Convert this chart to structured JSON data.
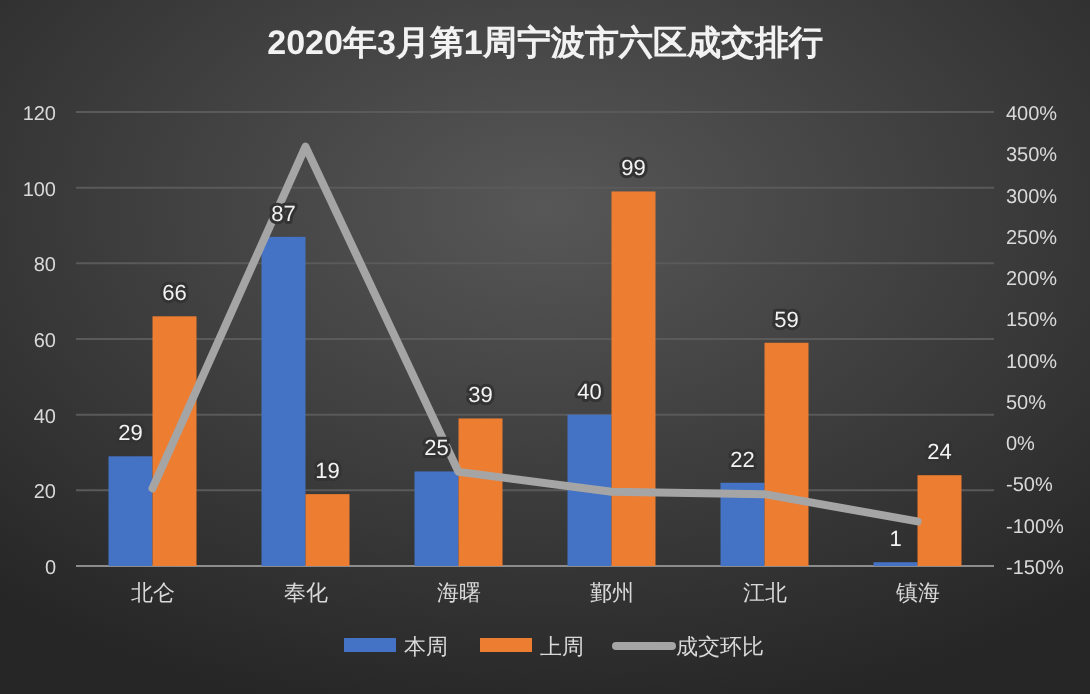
{
  "chart_data": {
    "type": "bar",
    "title": "2020年3月第1周宁波市六区成交排行",
    "categories": [
      "北仑",
      "奉化",
      "海曙",
      "鄞州",
      "江北",
      "镇海"
    ],
    "series": [
      {
        "name": "本周",
        "color": "#4472c4",
        "values": [
          29,
          87,
          25,
          40,
          22,
          1
        ],
        "value_labels": [
          "29",
          "87",
          "25",
          "40",
          "22",
          "1"
        ]
      },
      {
        "name": "上周",
        "color": "#ed7d31",
        "values": [
          66,
          19,
          39,
          99,
          59,
          24
        ],
        "value_labels": [
          "66",
          "19",
          "39",
          "99",
          "59",
          "24"
        ]
      },
      {
        "name": "成交环比",
        "color": "#a5a5a5",
        "type": "line",
        "axis": "y2",
        "values": [
          -56,
          358,
          -36,
          -60,
          -63,
          -96
        ]
      }
    ],
    "ylim": [
      0,
      120
    ],
    "yticks": [
      0,
      20,
      40,
      60,
      80,
      100,
      120
    ],
    "y2lim": [
      -150,
      400
    ],
    "y2ticks": [
      {
        "value": -150,
        "label": "-150%"
      },
      {
        "value": -100,
        "label": "-100%"
      },
      {
        "value": -50,
        "label": "-50%"
      },
      {
        "value": 0,
        "label": "0%"
      },
      {
        "value": 50,
        "label": "50%"
      },
      {
        "value": 100,
        "label": "100%"
      },
      {
        "value": 150,
        "label": "150%"
      },
      {
        "value": 200,
        "label": "200%"
      },
      {
        "value": 250,
        "label": "250%"
      },
      {
        "value": 300,
        "label": "300%"
      },
      {
        "value": 350,
        "label": "350%"
      },
      {
        "value": 400,
        "label": "400%"
      }
    ],
    "grid": "y",
    "legend": "bottom",
    "marker": "none"
  }
}
